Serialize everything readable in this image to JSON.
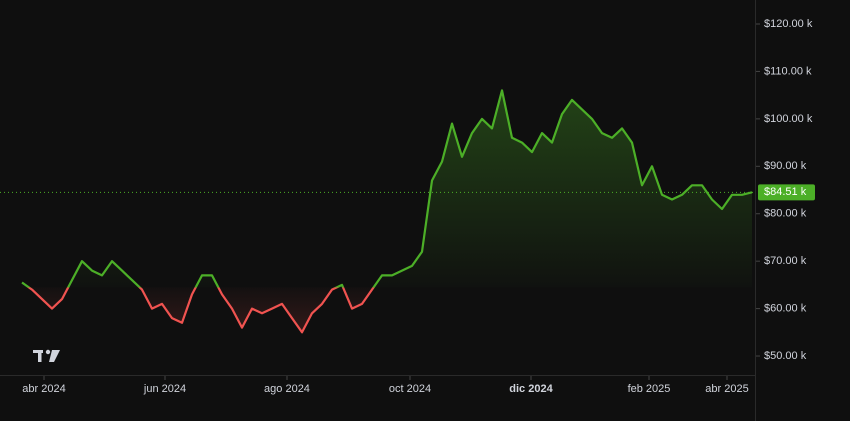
{
  "chart_data": {
    "type": "line",
    "values": [
      65.5,
      64,
      62,
      60,
      62,
      66,
      70,
      68,
      67,
      70,
      68,
      66,
      64,
      60,
      61,
      58,
      57,
      63,
      67,
      67,
      63,
      60,
      56,
      60,
      59,
      60,
      61,
      58,
      55,
      59,
      61,
      64,
      65,
      60,
      61,
      64,
      67,
      67,
      68,
      69,
      72,
      87,
      91,
      99,
      92,
      97,
      100,
      98,
      106,
      96,
      95,
      93,
      97,
      95,
      101,
      104,
      102,
      100,
      97,
      96,
      98,
      95,
      86,
      90,
      84,
      83,
      84,
      86,
      86,
      83,
      81,
      84,
      84,
      84.51
    ],
    "baseline": 64.5,
    "color_above": "#4caf27",
    "color_below": "#f05350",
    "xlim": [
      0,
      73.3
    ],
    "xticks": [
      {
        "value": 2.2,
        "label": "abr 2024"
      },
      {
        "value": 14.3,
        "label": "jun 2024"
      },
      {
        "value": 26.5,
        "label": "ago 2024"
      },
      {
        "value": 38.8,
        "label": "oct 2024"
      },
      {
        "value": 50.9,
        "label": "dic 2024"
      },
      {
        "value": 62.7,
        "label": "feb 2025"
      },
      {
        "value": 70.5,
        "label": "abr 2025"
      }
    ],
    "ylim": [
      46,
      125.06
    ],
    "yticks": [
      {
        "value": 50,
        "label": "$50.00 k"
      },
      {
        "value": 60,
        "label": "$60.00 k"
      },
      {
        "value": 70,
        "label": "$70.00 k"
      },
      {
        "value": 80,
        "label": "$80.00 k"
      },
      {
        "value": 90,
        "label": "$90.00 k"
      },
      {
        "value": 100,
        "label": "$100.00 k"
      },
      {
        "value": 110,
        "label": "$110.00 k"
      },
      {
        "value": 120,
        "label": "$120.00 k"
      }
    ],
    "last_price": {
      "value": 84.51,
      "label": "$84.51 k"
    }
  }
}
